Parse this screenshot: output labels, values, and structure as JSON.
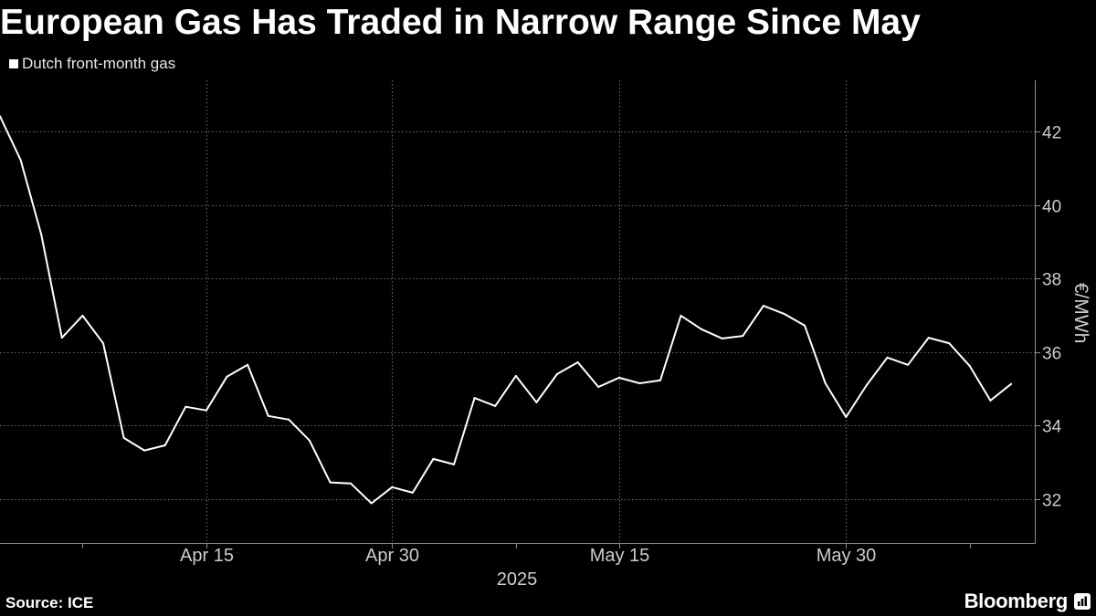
{
  "chart_data": {
    "type": "line",
    "title": "European Gas Has Traded in Narrow Range Since May",
    "xlabel": "2025",
    "ylabel": "€/MWh",
    "x": [
      "2025-04-01",
      "2025-04-02",
      "2025-04-03",
      "2025-04-04",
      "2025-04-07",
      "2025-04-08",
      "2025-04-09",
      "2025-04-10",
      "2025-04-11",
      "2025-04-14",
      "2025-04-15",
      "2025-04-16",
      "2025-04-17",
      "2025-04-22",
      "2025-04-23",
      "2025-04-24",
      "2025-04-25",
      "2025-04-28",
      "2025-04-29",
      "2025-04-30",
      "2025-05-01",
      "2025-05-02",
      "2025-05-05",
      "2025-05-06",
      "2025-05-07",
      "2025-05-08",
      "2025-05-09",
      "2025-05-12",
      "2025-05-13",
      "2025-05-14",
      "2025-05-15",
      "2025-05-16",
      "2025-05-19",
      "2025-05-20",
      "2025-05-21",
      "2025-05-22",
      "2025-05-23",
      "2025-05-26",
      "2025-05-27",
      "2025-05-28",
      "2025-05-29",
      "2025-05-30",
      "2025-06-02",
      "2025-06-03",
      "2025-06-04",
      "2025-06-05",
      "2025-06-06",
      "2025-06-09",
      "2025-06-10",
      "2025-06-11"
    ],
    "series": [
      {
        "name": "Dutch front-month gas",
        "color": "#ffffff",
        "values": [
          42.42,
          41.23,
          39.2,
          36.39,
          36.99,
          36.24,
          33.66,
          33.32,
          33.46,
          34.51,
          34.41,
          35.33,
          35.65,
          34.26,
          34.16,
          33.59,
          32.45,
          32.42,
          31.88,
          32.32,
          32.17,
          33.09,
          32.94,
          34.75,
          34.53,
          35.35,
          34.63,
          35.4,
          35.72,
          35.05,
          35.3,
          35.15,
          35.23,
          36.99,
          36.62,
          36.37,
          36.44,
          37.26,
          37.04,
          36.72,
          35.15,
          34.23,
          35.1,
          35.85,
          35.65,
          36.39,
          36.24,
          35.62,
          34.68,
          35.13
        ]
      }
    ],
    "xticks": [
      "Apr 15",
      "Apr 30",
      "May 15",
      "May 30"
    ],
    "yticks": [
      32,
      34,
      36,
      38,
      40,
      42
    ],
    "ylim": [
      30.8,
      43.4
    ],
    "y_axis_position": "right",
    "grid": true,
    "legend_position": "top-left"
  },
  "footer": {
    "source": "Source: ICE",
    "brand": "Bloomberg",
    "brand_icon": "bloomberg-terminal-icon"
  },
  "colors": {
    "background": "#000000",
    "text": "#ffffff",
    "tick_label": "#cccccc",
    "gridline": "#6e6e6e",
    "axis": "#8c8c8c"
  }
}
